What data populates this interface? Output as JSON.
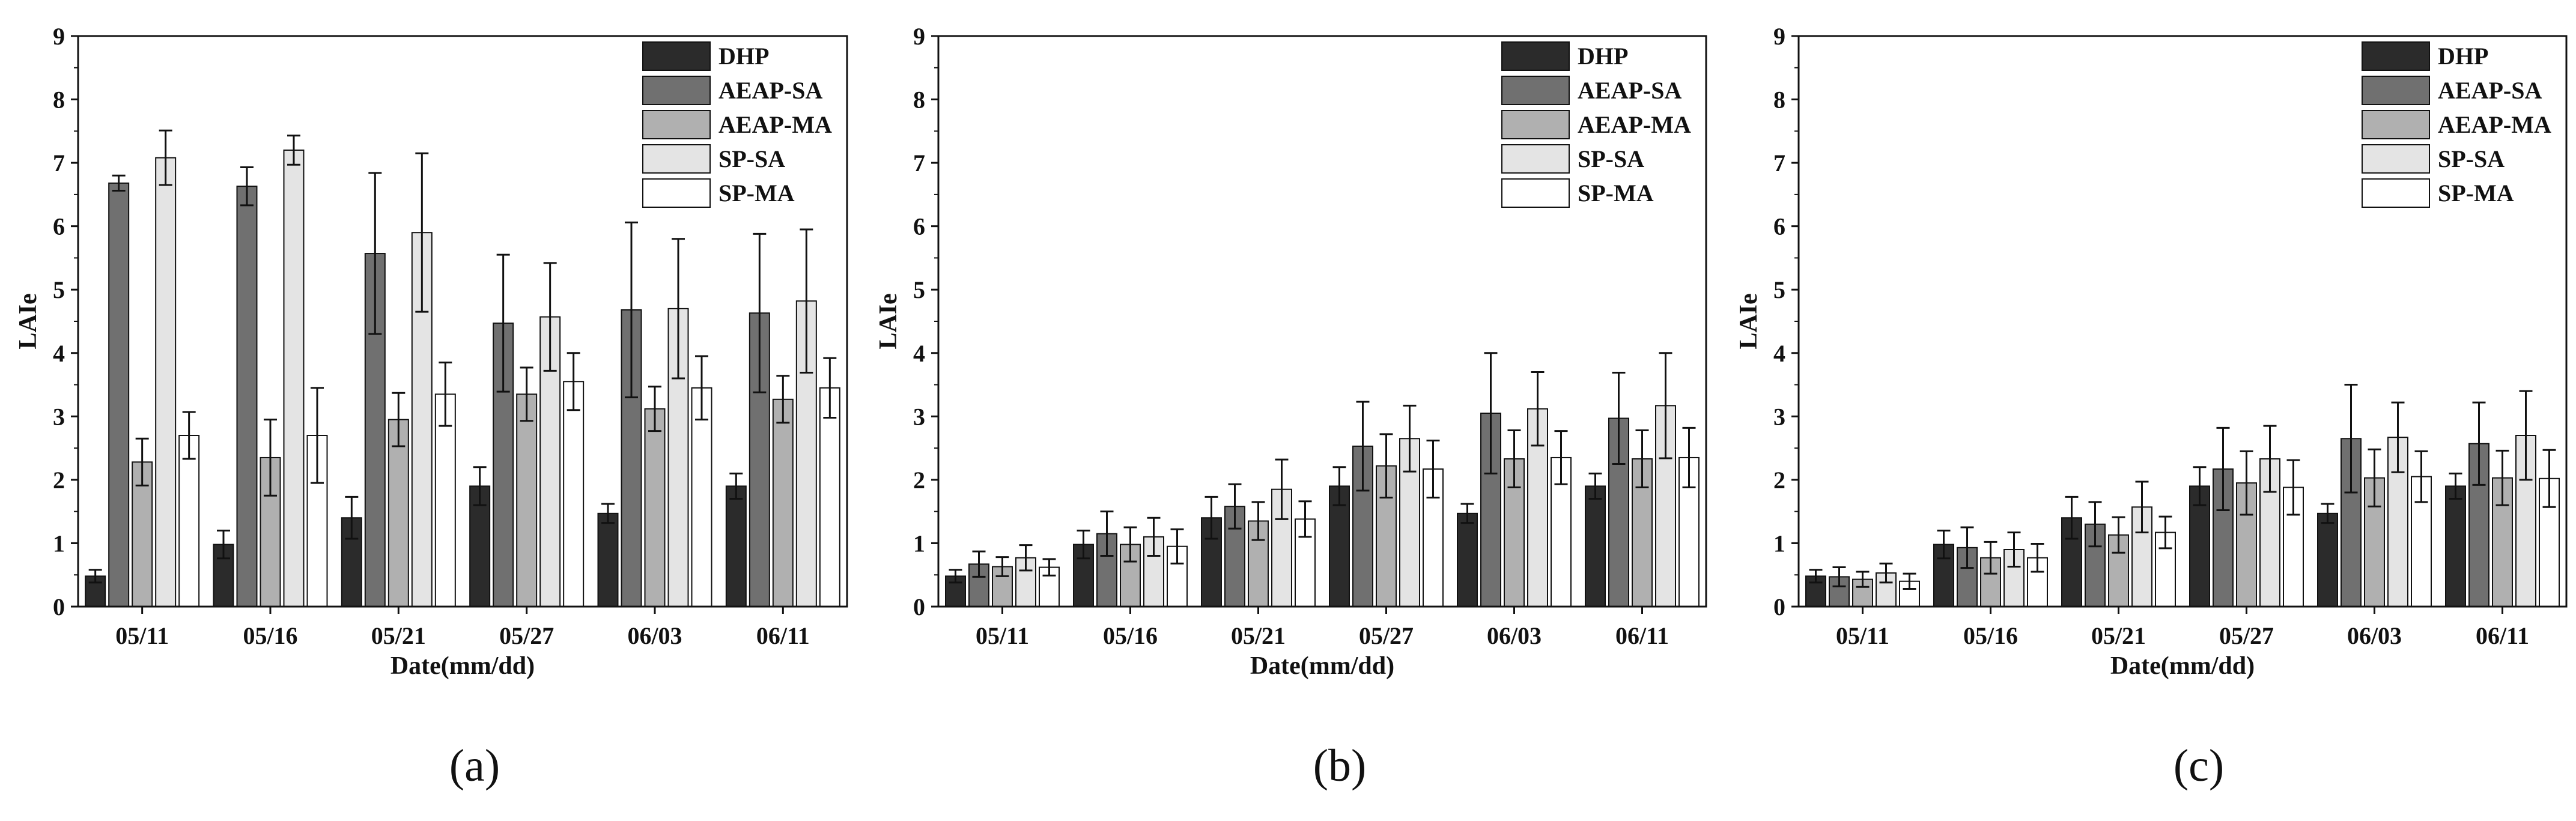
{
  "chart_data": [
    {
      "type": "bar",
      "panel_label": "(a)",
      "xlabel": "Date(mm/dd)",
      "ylabel": "LAIe",
      "ylim": [
        0,
        9
      ],
      "yticks": [
        "0",
        "1",
        "2",
        "3",
        "4",
        "5",
        "6",
        "7",
        "8",
        "9"
      ],
      "legend_position": "top-right",
      "categories": [
        "05/11",
        "05/16",
        "05/21",
        "05/27",
        "06/03",
        "06/11"
      ],
      "series": [
        {
          "name": "DHP",
          "color": "#2b2b2b",
          "values": [
            0.48,
            0.98,
            1.4,
            1.9,
            1.47,
            1.9
          ],
          "errors": [
            0.1,
            0.22,
            0.33,
            0.3,
            0.15,
            0.2
          ]
        },
        {
          "name": "AEAP-SA",
          "color": "#707070",
          "values": [
            6.68,
            6.63,
            5.57,
            4.47,
            4.68,
            4.63
          ],
          "errors": [
            0.12,
            0.3,
            1.27,
            1.08,
            1.38,
            1.25
          ]
        },
        {
          "name": "AEAP-MA",
          "color": "#b0b0b0",
          "values": [
            2.28,
            2.35,
            2.95,
            3.35,
            3.12,
            3.27
          ],
          "errors": [
            0.37,
            0.6,
            0.42,
            0.42,
            0.35,
            0.37
          ]
        },
        {
          "name": "SP-SA",
          "color": "#e4e4e4",
          "values": [
            7.08,
            7.2,
            5.9,
            4.57,
            4.7,
            4.82
          ],
          "errors": [
            0.43,
            0.23,
            1.25,
            0.85,
            1.1,
            1.13
          ]
        },
        {
          "name": "SP-MA",
          "color": "#ffffff",
          "values": [
            2.7,
            2.7,
            3.35,
            3.55,
            3.45,
            3.45
          ],
          "errors": [
            0.37,
            0.75,
            0.5,
            0.45,
            0.5,
            0.47
          ]
        }
      ]
    },
    {
      "type": "bar",
      "panel_label": "(b)",
      "xlabel": "Date(mm/dd)",
      "ylabel": "LAIe",
      "ylim": [
        0,
        9
      ],
      "yticks": [
        "0",
        "1",
        "2",
        "3",
        "4",
        "5",
        "6",
        "7",
        "8",
        "9"
      ],
      "legend_position": "top-right",
      "categories": [
        "05/11",
        "05/16",
        "05/21",
        "05/27",
        "06/03",
        "06/11"
      ],
      "series": [
        {
          "name": "DHP",
          "color": "#2b2b2b",
          "values": [
            0.48,
            0.98,
            1.4,
            1.9,
            1.47,
            1.9
          ],
          "errors": [
            0.1,
            0.22,
            0.33,
            0.3,
            0.15,
            0.2
          ]
        },
        {
          "name": "AEAP-SA",
          "color": "#707070",
          "values": [
            0.67,
            1.15,
            1.58,
            2.53,
            3.05,
            2.97
          ],
          "errors": [
            0.2,
            0.35,
            0.35,
            0.7,
            0.95,
            0.72
          ]
        },
        {
          "name": "AEAP-MA",
          "color": "#b0b0b0",
          "values": [
            0.63,
            0.98,
            1.35,
            2.22,
            2.33,
            2.33
          ],
          "errors": [
            0.15,
            0.27,
            0.3,
            0.5,
            0.45,
            0.45
          ]
        },
        {
          "name": "SP-SA",
          "color": "#e4e4e4",
          "values": [
            0.77,
            1.1,
            1.85,
            2.65,
            3.12,
            3.17
          ],
          "errors": [
            0.2,
            0.3,
            0.47,
            0.52,
            0.58,
            0.83
          ]
        },
        {
          "name": "SP-MA",
          "color": "#ffffff",
          "values": [
            0.62,
            0.95,
            1.38,
            2.17,
            2.35,
            2.35
          ],
          "errors": [
            0.13,
            0.27,
            0.28,
            0.45,
            0.42,
            0.47
          ]
        }
      ]
    },
    {
      "type": "bar",
      "panel_label": "(c)",
      "xlabel": "Date(mm/dd)",
      "ylabel": "LAIe",
      "ylim": [
        0,
        9
      ],
      "yticks": [
        "0",
        "1",
        "2",
        "3",
        "4",
        "5",
        "6",
        "7",
        "8",
        "9"
      ],
      "legend_position": "top-right",
      "categories": [
        "05/11",
        "05/16",
        "05/21",
        "05/27",
        "06/03",
        "06/11"
      ],
      "series": [
        {
          "name": "DHP",
          "color": "#2b2b2b",
          "values": [
            0.48,
            0.98,
            1.4,
            1.9,
            1.47,
            1.9
          ],
          "errors": [
            0.1,
            0.22,
            0.33,
            0.3,
            0.15,
            0.2
          ]
        },
        {
          "name": "AEAP-SA",
          "color": "#707070",
          "values": [
            0.47,
            0.93,
            1.3,
            2.17,
            2.65,
            2.57
          ],
          "errors": [
            0.15,
            0.32,
            0.35,
            0.65,
            0.85,
            0.65
          ]
        },
        {
          "name": "AEAP-MA",
          "color": "#b0b0b0",
          "values": [
            0.43,
            0.77,
            1.13,
            1.95,
            2.03,
            2.03
          ],
          "errors": [
            0.12,
            0.25,
            0.28,
            0.5,
            0.45,
            0.43
          ]
        },
        {
          "name": "SP-SA",
          "color": "#e4e4e4",
          "values": [
            0.53,
            0.9,
            1.57,
            2.33,
            2.67,
            2.7
          ],
          "errors": [
            0.15,
            0.27,
            0.4,
            0.52,
            0.55,
            0.7
          ]
        },
        {
          "name": "SP-MA",
          "color": "#ffffff",
          "values": [
            0.4,
            0.77,
            1.17,
            1.88,
            2.05,
            2.02
          ],
          "errors": [
            0.12,
            0.22,
            0.25,
            0.43,
            0.4,
            0.45
          ]
        }
      ]
    }
  ]
}
